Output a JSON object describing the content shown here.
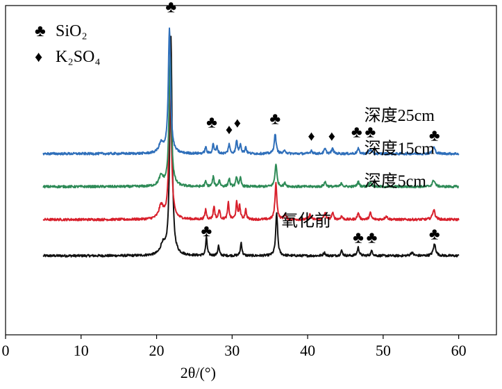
{
  "chart_data": {
    "type": "line",
    "xlabel": "2θ/(°)",
    "ylabel": "",
    "xlim": [
      0,
      65
    ],
    "ylim": [
      0,
      100
    ],
    "x_ticks": [
      0,
      10,
      20,
      30,
      40,
      50,
      60
    ],
    "x_tick_labels": [
      "0",
      "10",
      "20",
      "30",
      "40",
      "50",
      "60"
    ],
    "x_range": [
      5,
      60
    ],
    "legend": {
      "placement": "top-left",
      "entries": [
        {
          "marker": "♣",
          "label": "SiO₂"
        },
        {
          "marker": "♦",
          "label": "K₂SO₄"
        }
      ]
    },
    "series": [
      {
        "name": "氧化前",
        "color": "#111111",
        "baseline": 24,
        "peaks": [
          [
            20.8,
            3,
            0.35
          ],
          [
            21.9,
            66,
            0.18
          ],
          [
            26.6,
            5.5,
            0.12
          ],
          [
            28.2,
            3,
            0.12
          ],
          [
            31.2,
            4,
            0.12
          ],
          [
            35.9,
            13,
            0.15
          ],
          [
            42.2,
            1,
            0.15
          ],
          [
            44.5,
            1.5,
            0.15
          ],
          [
            46.7,
            2.5,
            0.15
          ],
          [
            48.5,
            1.5,
            0.15
          ],
          [
            53.8,
            1,
            0.2
          ],
          [
            56.8,
            3.5,
            0.2
          ]
        ]
      },
      {
        "name": "深度5cm",
        "color": "#d8202c",
        "baseline": 35,
        "peaks": [
          [
            20.6,
            4,
            0.35
          ],
          [
            21.8,
            46,
            0.18
          ],
          [
            26.5,
            3,
            0.12
          ],
          [
            27.6,
            4,
            0.12
          ],
          [
            28.3,
            3,
            0.12
          ],
          [
            29.5,
            5,
            0.12
          ],
          [
            30.6,
            5,
            0.12
          ],
          [
            31.0,
            4,
            0.12
          ],
          [
            31.8,
            3,
            0.12
          ],
          [
            35.8,
            11,
            0.15
          ],
          [
            37.0,
            1.5,
            0.15
          ],
          [
            40.3,
            1.5,
            0.15
          ],
          [
            42.3,
            2,
            0.15
          ],
          [
            43.3,
            2,
            0.15
          ],
          [
            44.5,
            1,
            0.15
          ],
          [
            46.7,
            2,
            0.15
          ],
          [
            48.3,
            2,
            0.15
          ],
          [
            50.4,
            1,
            0.2
          ],
          [
            56.7,
            3,
            0.2
          ]
        ]
      },
      {
        "name": "深度15cm",
        "color": "#2e8b57",
        "baseline": 45,
        "peaks": [
          [
            20.6,
            3,
            0.35
          ],
          [
            21.8,
            39,
            0.18
          ],
          [
            26.5,
            1.5,
            0.12
          ],
          [
            27.5,
            3,
            0.12
          ],
          [
            28.3,
            2,
            0.12
          ],
          [
            29.6,
            2.5,
            0.12
          ],
          [
            30.6,
            3,
            0.12
          ],
          [
            31.1,
            2.5,
            0.12
          ],
          [
            35.8,
            7,
            0.15
          ],
          [
            37.0,
            1,
            0.15
          ],
          [
            42.3,
            1.5,
            0.15
          ],
          [
            44.5,
            1,
            0.15
          ],
          [
            46.7,
            1.5,
            0.15
          ],
          [
            48.3,
            1.5,
            0.15
          ],
          [
            56.7,
            2,
            0.2
          ]
        ]
      },
      {
        "name": "深度25cm",
        "color": "#2f6fba",
        "baseline": 55,
        "peaks": [
          [
            20.6,
            3,
            0.35
          ],
          [
            21.7,
            38,
            0.18
          ],
          [
            26.5,
            2,
            0.12
          ],
          [
            27.5,
            3,
            0.12
          ],
          [
            28.0,
            2,
            0.12
          ],
          [
            29.6,
            3,
            0.12
          ],
          [
            30.6,
            4,
            0.12
          ],
          [
            31.1,
            3,
            0.12
          ],
          [
            31.8,
            2,
            0.12
          ],
          [
            35.7,
            6,
            0.15
          ],
          [
            37.0,
            1,
            0.15
          ],
          [
            40.5,
            1,
            0.15
          ],
          [
            42.3,
            1.5,
            0.15
          ],
          [
            43.3,
            1.5,
            0.15
          ],
          [
            46.7,
            1.5,
            0.15
          ],
          [
            48.3,
            1.5,
            0.15
          ],
          [
            56.7,
            2,
            0.2
          ]
        ]
      }
    ],
    "annotations": [
      {
        "text": "♣",
        "x": 21.9,
        "y": 98
      },
      {
        "text": "♣",
        "x": 27.3,
        "y": 63
      },
      {
        "text": "♦",
        "x": 29.6,
        "y": 61
      },
      {
        "text": "♦",
        "x": 30.7,
        "y": 63
      },
      {
        "text": "♣",
        "x": 35.7,
        "y": 64
      },
      {
        "text": "♦",
        "x": 40.5,
        "y": 59
      },
      {
        "text": "♦",
        "x": 43.2,
        "y": 59
      },
      {
        "text": "♣",
        "x": 46.5,
        "y": 60
      },
      {
        "text": "♣",
        "x": 48.3,
        "y": 60
      },
      {
        "text": "♣",
        "x": 56.8,
        "y": 59
      },
      {
        "text": "♣",
        "x": 26.6,
        "y": 30
      },
      {
        "text": "♣",
        "x": 46.7,
        "y": 28
      },
      {
        "text": "♣",
        "x": 48.5,
        "y": 28
      },
      {
        "text": "♣",
        "x": 56.8,
        "y": 29
      }
    ],
    "series_labels": [
      {
        "text": "深度25cm",
        "x": 47.5,
        "y": 65
      },
      {
        "text": "深度15cm",
        "x": 47.5,
        "y": 55
      },
      {
        "text": "深度5cm",
        "x": 47.5,
        "y": 45
      },
      {
        "text": "氧化前",
        "x": 36.5,
        "y": 33
      }
    ]
  }
}
